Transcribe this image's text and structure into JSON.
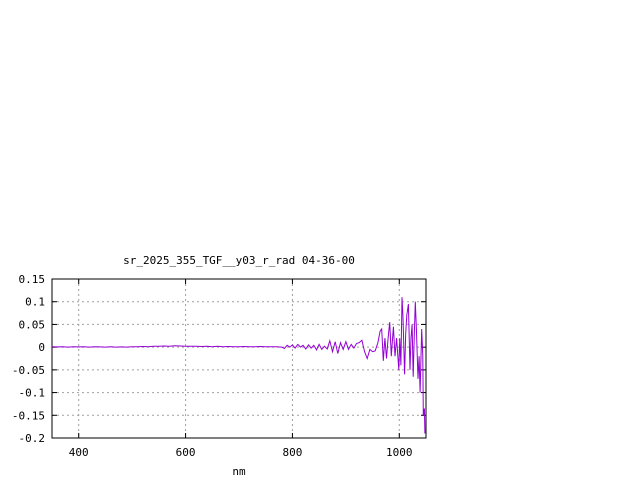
{
  "chart_data": {
    "type": "line",
    "title": "sr_2025_355_TGF__y03_r_rad 04-36-00",
    "xlabel": "nm",
    "ylabel": "",
    "xlim": [
      350,
      1050
    ],
    "ylim": [
      -0.2,
      0.15
    ],
    "xticks": [
      400,
      600,
      800,
      1000
    ],
    "yticks": [
      0.15,
      0.1,
      0.05,
      0,
      -0.05,
      -0.1,
      -0.15,
      -0.2
    ],
    "ytick_labels": [
      "0.15",
      "0.1",
      "0.05",
      "0",
      "-0.05",
      "-0.1",
      "-0.15",
      "-0.2"
    ],
    "xtick_labels": [
      "400",
      "600",
      "800",
      "1000"
    ],
    "grid": true,
    "line_color": "#9400d3",
    "series": [
      {
        "x": [
          350,
          360,
          370,
          380,
          390,
          400,
          410,
          420,
          430,
          440,
          450,
          460,
          470,
          480,
          490,
          500,
          510,
          520,
          530,
          540,
          550,
          560,
          570,
          580,
          590,
          600,
          610,
          620,
          630,
          640,
          650,
          660,
          670,
          680,
          690,
          700,
          710,
          720,
          730,
          740,
          750,
          760,
          770,
          780,
          785,
          790,
          795,
          800,
          805,
          810,
          815,
          820,
          825,
          830,
          835,
          840,
          845,
          850,
          855,
          860,
          865,
          870,
          875,
          880,
          885,
          890,
          895,
          900,
          905,
          910,
          915,
          920,
          925,
          930,
          935,
          940,
          945,
          950,
          955,
          960,
          964,
          967,
          970,
          973,
          976,
          979,
          982,
          985,
          989,
          992,
          995,
          999,
          1001,
          1003,
          1005,
          1007,
          1010,
          1012,
          1014,
          1017,
          1020,
          1022,
          1024,
          1026,
          1028,
          1030,
          1032,
          1035,
          1037,
          1039,
          1042,
          1044,
          1045,
          1047,
          1048
        ],
        "y": [
          0.001,
          0.0005,
          0.001,
          0,
          0.001,
          0.0005,
          0.001,
          0,
          0.001,
          0.0005,
          0,
          0.001,
          0,
          0.0005,
          0,
          0.001,
          0.001,
          0.0015,
          0.001,
          0.002,
          0.002,
          0.0025,
          0.002,
          0.003,
          0.0025,
          0.002,
          0.002,
          0.002,
          0.0015,
          0.002,
          0.001,
          0.002,
          0.001,
          0.0015,
          0.001,
          0.001,
          0.0015,
          0.001,
          0.001,
          0.0015,
          0.001,
          0.001,
          0.001,
          0,
          -0.003,
          0.004,
          0,
          0.005,
          -0.002,
          0.006,
          0,
          0.004,
          -0.004,
          0.005,
          -0.002,
          0.004,
          -0.006,
          0.006,
          -0.005,
          0.002,
          -0.004,
          0.014,
          -0.01,
          0.012,
          -0.014,
          0.01,
          -0.005,
          0.012,
          -0.005,
          0.006,
          -0.002,
          0.008,
          0.01,
          0.015,
          -0.01,
          -0.025,
          -0.005,
          -0.01,
          -0.008,
          0.01,
          0.035,
          0.04,
          -0.03,
          0.02,
          -0.025,
          0.02,
          0.055,
          -0.02,
          0.045,
          -0.02,
          0.02,
          -0.05,
          0.02,
          -0.04,
          0.11,
          0.065,
          -0.06,
          0.03,
          0.07,
          0.095,
          -0.05,
          0.02,
          0.05,
          -0.065,
          0.02,
          0.1,
          0.04,
          -0.07,
          -0.02,
          -0.1,
          0.04,
          -0.02,
          -0.15,
          -0.135,
          -0.19
        ]
      }
    ]
  }
}
